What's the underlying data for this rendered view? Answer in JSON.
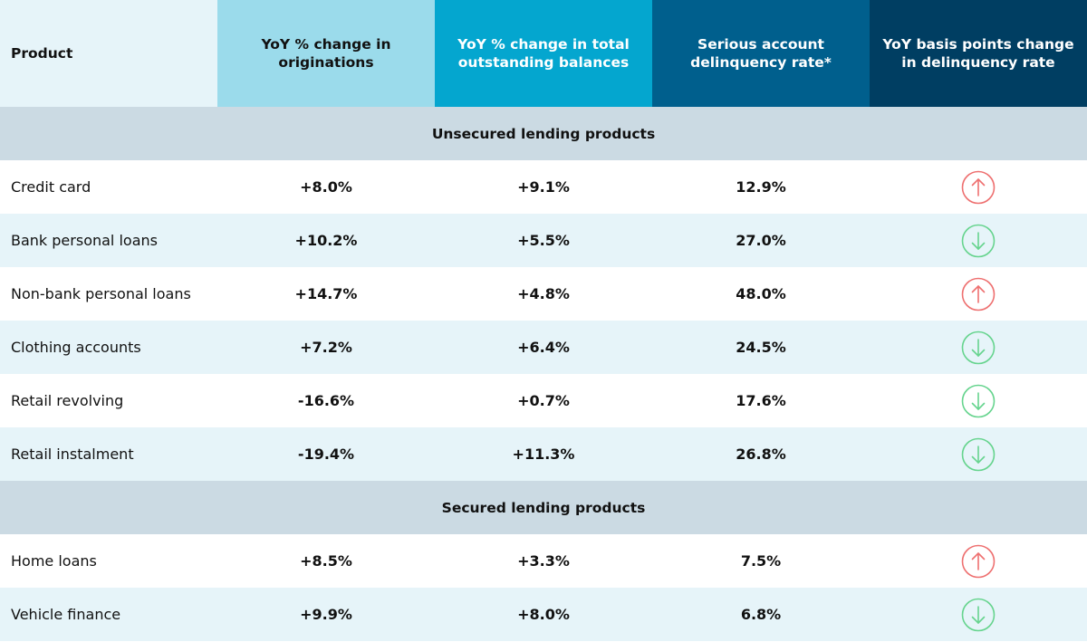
{
  "colors": {
    "up": "#ee7070",
    "down": "#66d48e"
  },
  "chart_data": {
    "type": "table",
    "headers": [
      "Product",
      "YoY % change in originations",
      "YoY % change in total outstanding balances",
      "Serious account delinquency rate*",
      "YoY basis points change in delinquency rate"
    ],
    "sections": [
      {
        "title": "Unsecured lending products",
        "rows": [
          {
            "product": "Credit card",
            "originations": "+8.0%",
            "balances": "+9.1%",
            "delinquency": "12.9%",
            "trend": "up"
          },
          {
            "product": "Bank personal loans",
            "originations": "+10.2%",
            "balances": "+5.5%",
            "delinquency": "27.0%",
            "trend": "down"
          },
          {
            "product": "Non-bank personal loans",
            "originations": "+14.7%",
            "balances": "+4.8%",
            "delinquency": "48.0%",
            "trend": "up"
          },
          {
            "product": "Clothing accounts",
            "originations": "+7.2%",
            "balances": "+6.4%",
            "delinquency": "24.5%",
            "trend": "down"
          },
          {
            "product": "Retail revolving",
            "originations": "-16.6%",
            "balances": "+0.7%",
            "delinquency": "17.6%",
            "trend": "down"
          },
          {
            "product": "Retail instalment",
            "originations": "-19.4%",
            "balances": "+11.3%",
            "delinquency": "26.8%",
            "trend": "down"
          }
        ]
      },
      {
        "title": "Secured lending products",
        "rows": [
          {
            "product": "Home loans",
            "originations": "+8.5%",
            "balances": "+3.3%",
            "delinquency": "7.5%",
            "trend": "up"
          },
          {
            "product": "Vehicle finance",
            "originations": "+9.9%",
            "balances": "+8.0%",
            "delinquency": "6.8%",
            "trend": "down"
          }
        ]
      }
    ]
  }
}
